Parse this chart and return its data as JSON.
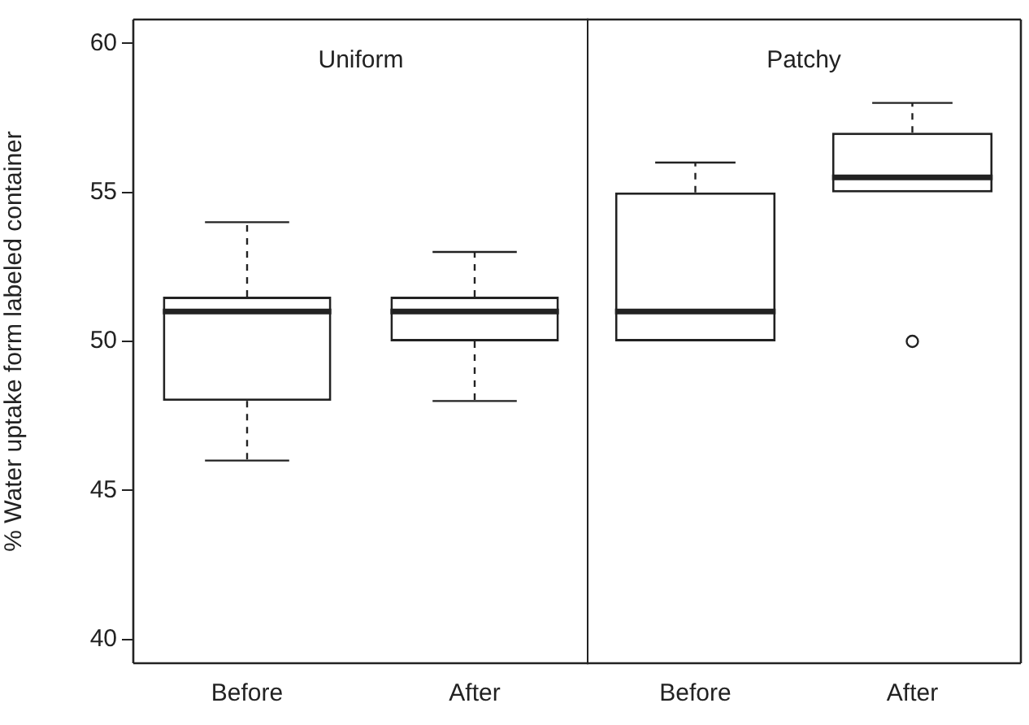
{
  "chart_data": [
    {
      "type": "box",
      "title": "Uniform",
      "ylabel": "% Water uptake form labeled container",
      "categories": [
        "Before",
        "After"
      ],
      "boxes": [
        {
          "low": 46,
          "q1": 48,
          "median": 51,
          "q3": 51.5,
          "high": 54
        },
        {
          "low": 48,
          "q1": 50,
          "median": 51,
          "q3": 51.5,
          "high": 53
        }
      ],
      "ylim": [
        39.2,
        60.8
      ],
      "yticks": [
        40,
        45,
        50,
        55,
        60
      ]
    },
    {
      "type": "box",
      "title": "Patchy",
      "categories": [
        "Before",
        "After"
      ],
      "boxes": [
        {
          "low": 50,
          "q1": 50,
          "median": 51,
          "q3": 55,
          "high": 56
        },
        {
          "low": 55,
          "q1": 55,
          "median": 55.5,
          "q3": 57,
          "high": 58,
          "outliers": [
            50
          ]
        }
      ],
      "ylim": [
        39.2,
        60.8
      ],
      "yticks": [
        40,
        45,
        50,
        55,
        60
      ],
      "tick_labels": "x"
    }
  ]
}
